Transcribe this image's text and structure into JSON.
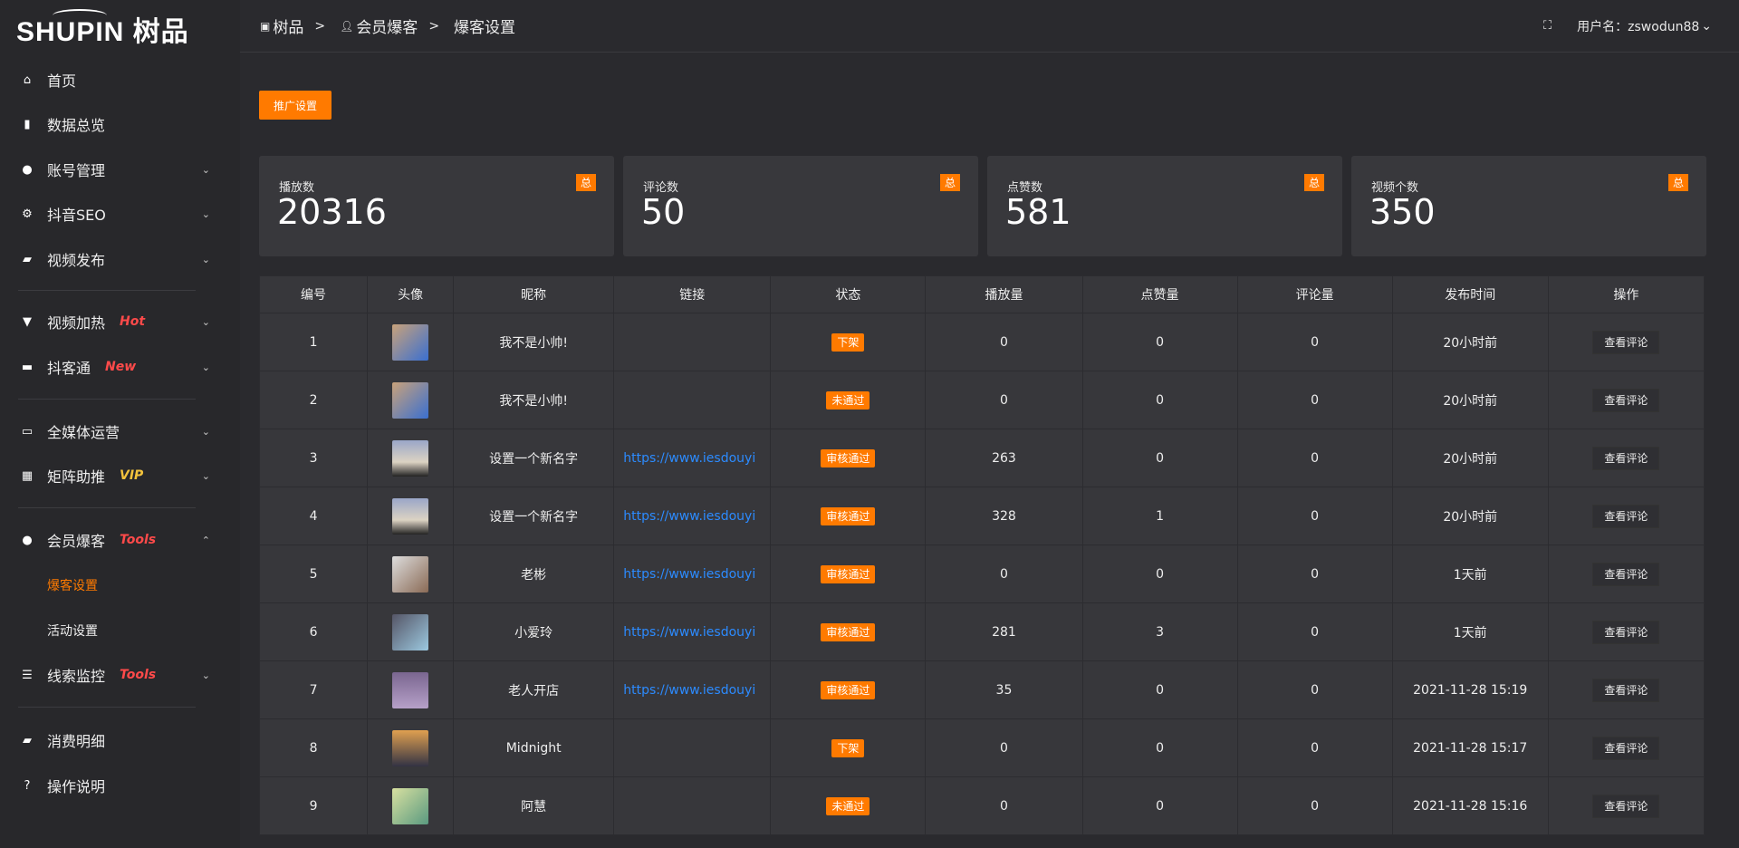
{
  "brand": {
    "logo": "SHUPIN 树品"
  },
  "colors": {
    "accent": "#ff7a00",
    "link": "#2c8bff",
    "hot": "#ff4a4a",
    "vip": "#f3c33c"
  },
  "sidebar": {
    "items": [
      {
        "label": "首页",
        "icon": "home-icon"
      },
      {
        "label": "数据总览",
        "icon": "bar-chart-icon"
      },
      {
        "label": "账号管理",
        "icon": "user-icon",
        "chev": "⌄"
      },
      {
        "label": "抖音SEO",
        "icon": "gear-icon",
        "chev": "⌄"
      },
      {
        "label": "视频发布",
        "icon": "camera-icon",
        "chev": "⌄"
      },
      {
        "label": "视频加热",
        "icon": "flag-icon",
        "tag": "Hot",
        "chev": "⌄"
      },
      {
        "label": "抖客通",
        "icon": "chat-icon",
        "tag": "New",
        "chev": "⌄"
      },
      {
        "label": "全媒体运营",
        "icon": "monitor-icon",
        "chev": "⌄"
      },
      {
        "label": "矩阵助推",
        "icon": "grid-icon",
        "tag": "VIP",
        "chev": "⌄"
      },
      {
        "label": "会员爆客",
        "icon": "user-icon",
        "tag": "Tools",
        "chev": "⌃"
      },
      {
        "label": "线索监控",
        "icon": "sliders-icon",
        "tag": "Tools",
        "chev": "⌄"
      },
      {
        "label": "消费明细",
        "icon": "wallet-icon"
      },
      {
        "label": "操作说明",
        "icon": "help-icon"
      }
    ],
    "sub": [
      "爆客设置",
      "活动设置"
    ]
  },
  "header": {
    "crumbs": [
      "树品",
      "会员爆客",
      "爆客设置"
    ],
    "sep": ">",
    "user": "用户名：zswodun88"
  },
  "promo_button": "推广设置",
  "stats": [
    {
      "label": "播放数",
      "value": "20316",
      "badge": "总"
    },
    {
      "label": "评论数",
      "value": "50",
      "badge": "总"
    },
    {
      "label": "点赞数",
      "value": "581",
      "badge": "总"
    },
    {
      "label": "视频个数",
      "value": "350",
      "badge": "总"
    }
  ],
  "table": {
    "headers": [
      "编号",
      "头像",
      "昵称",
      "链接",
      "状态",
      "播放量",
      "点赞量",
      "评论量",
      "发布时间",
      "操作"
    ],
    "op_label": "查看评论",
    "rows": [
      {
        "id": "1",
        "name": "我不是小帅!",
        "link": "",
        "status": "下架",
        "plays": "0",
        "likes": "0",
        "comments": "0",
        "time": "20小时前"
      },
      {
        "id": "2",
        "name": "我不是小帅!",
        "link": "",
        "status": "未通过",
        "plays": "0",
        "likes": "0",
        "comments": "0",
        "time": "20小时前"
      },
      {
        "id": "3",
        "name": "设置一个新名字",
        "link": "https://www.iesdouyin.c",
        "status": "审核通过",
        "plays": "263",
        "likes": "0",
        "comments": "0",
        "time": "20小时前"
      },
      {
        "id": "4",
        "name": "设置一个新名字",
        "link": "https://www.iesdouyin.c",
        "status": "审核通过",
        "plays": "328",
        "likes": "1",
        "comments": "0",
        "time": "20小时前"
      },
      {
        "id": "5",
        "name": "老彬",
        "link": "https://www.iesdouyin.c",
        "status": "审核通过",
        "plays": "0",
        "likes": "0",
        "comments": "0",
        "time": "1天前"
      },
      {
        "id": "6",
        "name": "小爱玲",
        "link": "https://www.iesdouyin.c",
        "status": "审核通过",
        "plays": "281",
        "likes": "3",
        "comments": "0",
        "time": "1天前"
      },
      {
        "id": "7",
        "name": "老人开店",
        "link": "https://www.iesdouyin.c",
        "status": "审核通过",
        "plays": "35",
        "likes": "0",
        "comments": "0",
        "time": "2021-11-28 15:19"
      },
      {
        "id": "8",
        "name": "Midnight",
        "link": "",
        "status": "下架",
        "plays": "0",
        "likes": "0",
        "comments": "0",
        "time": "2021-11-28 15:17"
      },
      {
        "id": "9",
        "name": "阿慧",
        "link": "",
        "status": "未通过",
        "plays": "0",
        "likes": "0",
        "comments": "0",
        "time": "2021-11-28 15:16"
      }
    ]
  }
}
